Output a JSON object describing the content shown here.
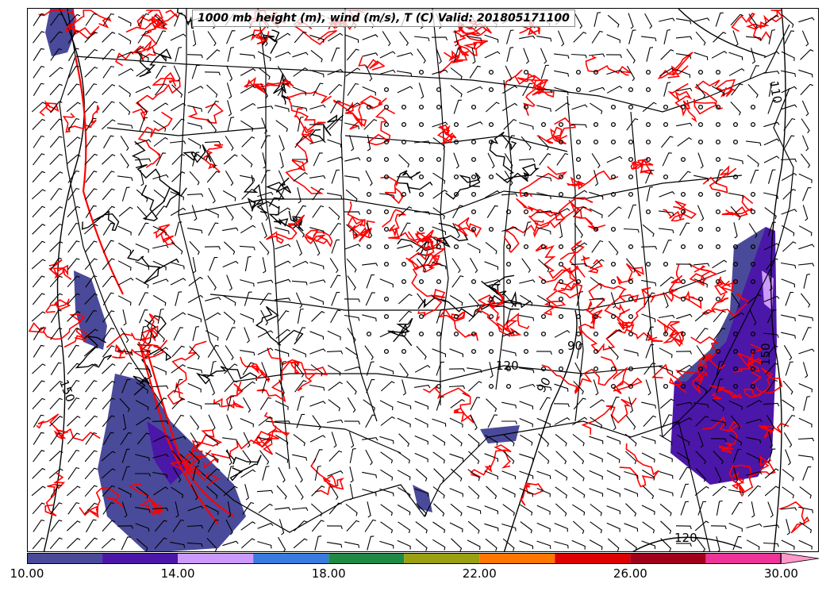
{
  "title": "1000 mb height (m), wind (m/s), T (C) Valid: 201805171100",
  "map": {
    "fields": [
      "1000 mb height",
      "wind barbs",
      "temperature contours",
      "shaded wind speed"
    ],
    "height_contour_labels": [
      "150",
      "150",
      "120",
      "110",
      "90",
      "90",
      "120"
    ],
    "colors": {
      "temperature_contour": "#ff0000",
      "height_contour": "#000000",
      "borders": "#000000"
    }
  },
  "colorbar": {
    "tick_labels": [
      "10.00",
      "14.00",
      "18.00",
      "22.00",
      "26.00",
      "30.00"
    ],
    "tick_values": [
      10,
      14,
      18,
      22,
      26,
      30
    ],
    "range": [
      10,
      31
    ],
    "bins": [
      {
        "from": 10,
        "to": 12,
        "color": "#4a4a9a"
      },
      {
        "from": 12,
        "to": 14,
        "color": "#4b17a8"
      },
      {
        "from": 14,
        "to": 16,
        "color": "#cc99ff"
      },
      {
        "from": 16,
        "to": 18,
        "color": "#3a7be0"
      },
      {
        "from": 18,
        "to": 20,
        "color": "#1f8a44"
      },
      {
        "from": 20,
        "to": 22,
        "color": "#9aa012"
      },
      {
        "from": 22,
        "to": 24,
        "color": "#ff7700"
      },
      {
        "from": 24,
        "to": 26,
        "color": "#dd0000"
      },
      {
        "from": 26,
        "to": 28,
        "color": "#a0001c"
      },
      {
        "from": 28,
        "to": 30,
        "color": "#ee3399"
      },
      {
        "from": 30,
        "to": 31,
        "color": "#ff99cc"
      }
    ]
  }
}
